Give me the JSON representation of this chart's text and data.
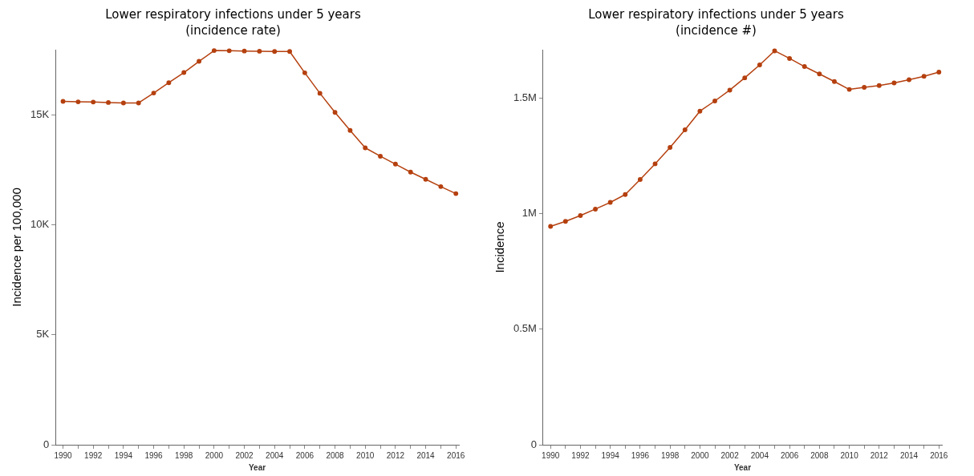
{
  "chart_data": [
    {
      "type": "line",
      "title": "Lower respiratory infections under 5 years",
      "subtitle": "(incidence rate)",
      "xlabel": "Year",
      "ylabel": "Incidence per 100,000",
      "x": [
        1990,
        1991,
        1992,
        1993,
        1994,
        1995,
        1996,
        1997,
        1998,
        1999,
        2000,
        2001,
        2002,
        2003,
        2004,
        2005,
        2006,
        2007,
        2008,
        2009,
        2010,
        2011,
        2012,
        2013,
        2014,
        2015,
        2016
      ],
      "series": [
        {
          "color": "#b5400f",
          "values": [
            15600,
            15580,
            15570,
            15550,
            15530,
            15530,
            15980,
            16450,
            16910,
            17420,
            17910,
            17900,
            17890,
            17880,
            17870,
            17870,
            16900,
            15970,
            15100,
            14280,
            13490,
            13110,
            12750,
            12390,
            12060,
            11730,
            11410
          ]
        }
      ],
      "xlim": [
        1989.5,
        2016.2
      ],
      "xticks": [
        {
          "value": 1990,
          "label": "1990"
        },
        {
          "value": 1991,
          "label": null
        },
        {
          "value": 1992,
          "label": "1992"
        },
        {
          "value": 1993,
          "label": null
        },
        {
          "value": 1994,
          "label": "1994"
        },
        {
          "value": 1995,
          "label": null
        },
        {
          "value": 1996,
          "label": "1996"
        },
        {
          "value": 1997,
          "label": null
        },
        {
          "value": 1998,
          "label": "1998"
        },
        {
          "value": 1999,
          "label": null
        },
        {
          "value": 2000,
          "label": "2000"
        },
        {
          "value": 2001,
          "label": null
        },
        {
          "value": 2002,
          "label": "2002"
        },
        {
          "value": 2003,
          "label": null
        },
        {
          "value": 2004,
          "label": "2004"
        },
        {
          "value": 2005,
          "label": null
        },
        {
          "value": 2006,
          "label": "2006"
        },
        {
          "value": 2007,
          "label": null
        },
        {
          "value": 2008,
          "label": "2008"
        },
        {
          "value": 2009,
          "label": null
        },
        {
          "value": 2010,
          "label": "2010"
        },
        {
          "value": 2011,
          "label": null
        },
        {
          "value": 2012,
          "label": "2012"
        },
        {
          "value": 2013,
          "label": null
        },
        {
          "value": 2014,
          "label": "2014"
        },
        {
          "value": 2015,
          "label": null
        },
        {
          "value": 2016,
          "label": "2016"
        }
      ],
      "ylim": [
        0,
        17950
      ],
      "yticks": [
        0,
        {
          "value": 5000,
          "label": "5K"
        },
        {
          "value": 10000,
          "label": "10K"
        },
        {
          "value": 15000,
          "label": "15K"
        }
      ],
      "grid": false,
      "legend": false,
      "marker": "circle",
      "line_style": "solid"
    },
    {
      "type": "line",
      "title": "Lower respiratory infections under 5 years",
      "subtitle": "(incidence #)",
      "xlabel": "Year",
      "ylabel": "Incidence",
      "x": [
        1990,
        1991,
        1992,
        1993,
        1994,
        1995,
        1996,
        1997,
        1998,
        1999,
        2000,
        2001,
        2002,
        2003,
        2004,
        2005,
        2006,
        2007,
        2008,
        2009,
        2010,
        2011,
        2012,
        2013,
        2014,
        2015,
        2016
      ],
      "series": [
        {
          "color": "#b5400f",
          "values": [
            945000,
            967000,
            992000,
            1020000,
            1049000,
            1083000,
            1148000,
            1216000,
            1287000,
            1363000,
            1444000,
            1488000,
            1535000,
            1588000,
            1644000,
            1705000,
            1672000,
            1637000,
            1605000,
            1572000,
            1538000,
            1547000,
            1555000,
            1566000,
            1580000,
            1595000,
            1613000
          ]
        }
      ],
      "xlim": [
        1989.5,
        2016.2
      ],
      "xticks": [
        {
          "value": 1990,
          "label": "1990"
        },
        {
          "value": 1991,
          "label": null
        },
        {
          "value": 1992,
          "label": "1992"
        },
        {
          "value": 1993,
          "label": null
        },
        {
          "value": 1994,
          "label": "1994"
        },
        {
          "value": 1995,
          "label": null
        },
        {
          "value": 1996,
          "label": "1996"
        },
        {
          "value": 1997,
          "label": null
        },
        {
          "value": 1998,
          "label": "1998"
        },
        {
          "value": 1999,
          "label": null
        },
        {
          "value": 2000,
          "label": "2000"
        },
        {
          "value": 2001,
          "label": null
        },
        {
          "value": 2002,
          "label": "2002"
        },
        {
          "value": 2003,
          "label": null
        },
        {
          "value": 2004,
          "label": "2004"
        },
        {
          "value": 2005,
          "label": null
        },
        {
          "value": 2006,
          "label": "2006"
        },
        {
          "value": 2007,
          "label": null
        },
        {
          "value": 2008,
          "label": "2008"
        },
        {
          "value": 2009,
          "label": null
        },
        {
          "value": 2010,
          "label": "2010"
        },
        {
          "value": 2011,
          "label": null
        },
        {
          "value": 2012,
          "label": "2012"
        },
        {
          "value": 2013,
          "label": null
        },
        {
          "value": 2014,
          "label": "2014"
        },
        {
          "value": 2015,
          "label": null
        },
        {
          "value": 2016,
          "label": "2016"
        }
      ],
      "ylim": [
        0,
        1710000
      ],
      "yticks": [
        0,
        {
          "value": 500000,
          "label": "0.5M"
        },
        {
          "value": 1000000,
          "label": "1M"
        },
        {
          "value": 1500000,
          "label": "1.5M"
        }
      ],
      "grid": false,
      "legend": false,
      "marker": "circle",
      "line_style": "solid"
    }
  ]
}
